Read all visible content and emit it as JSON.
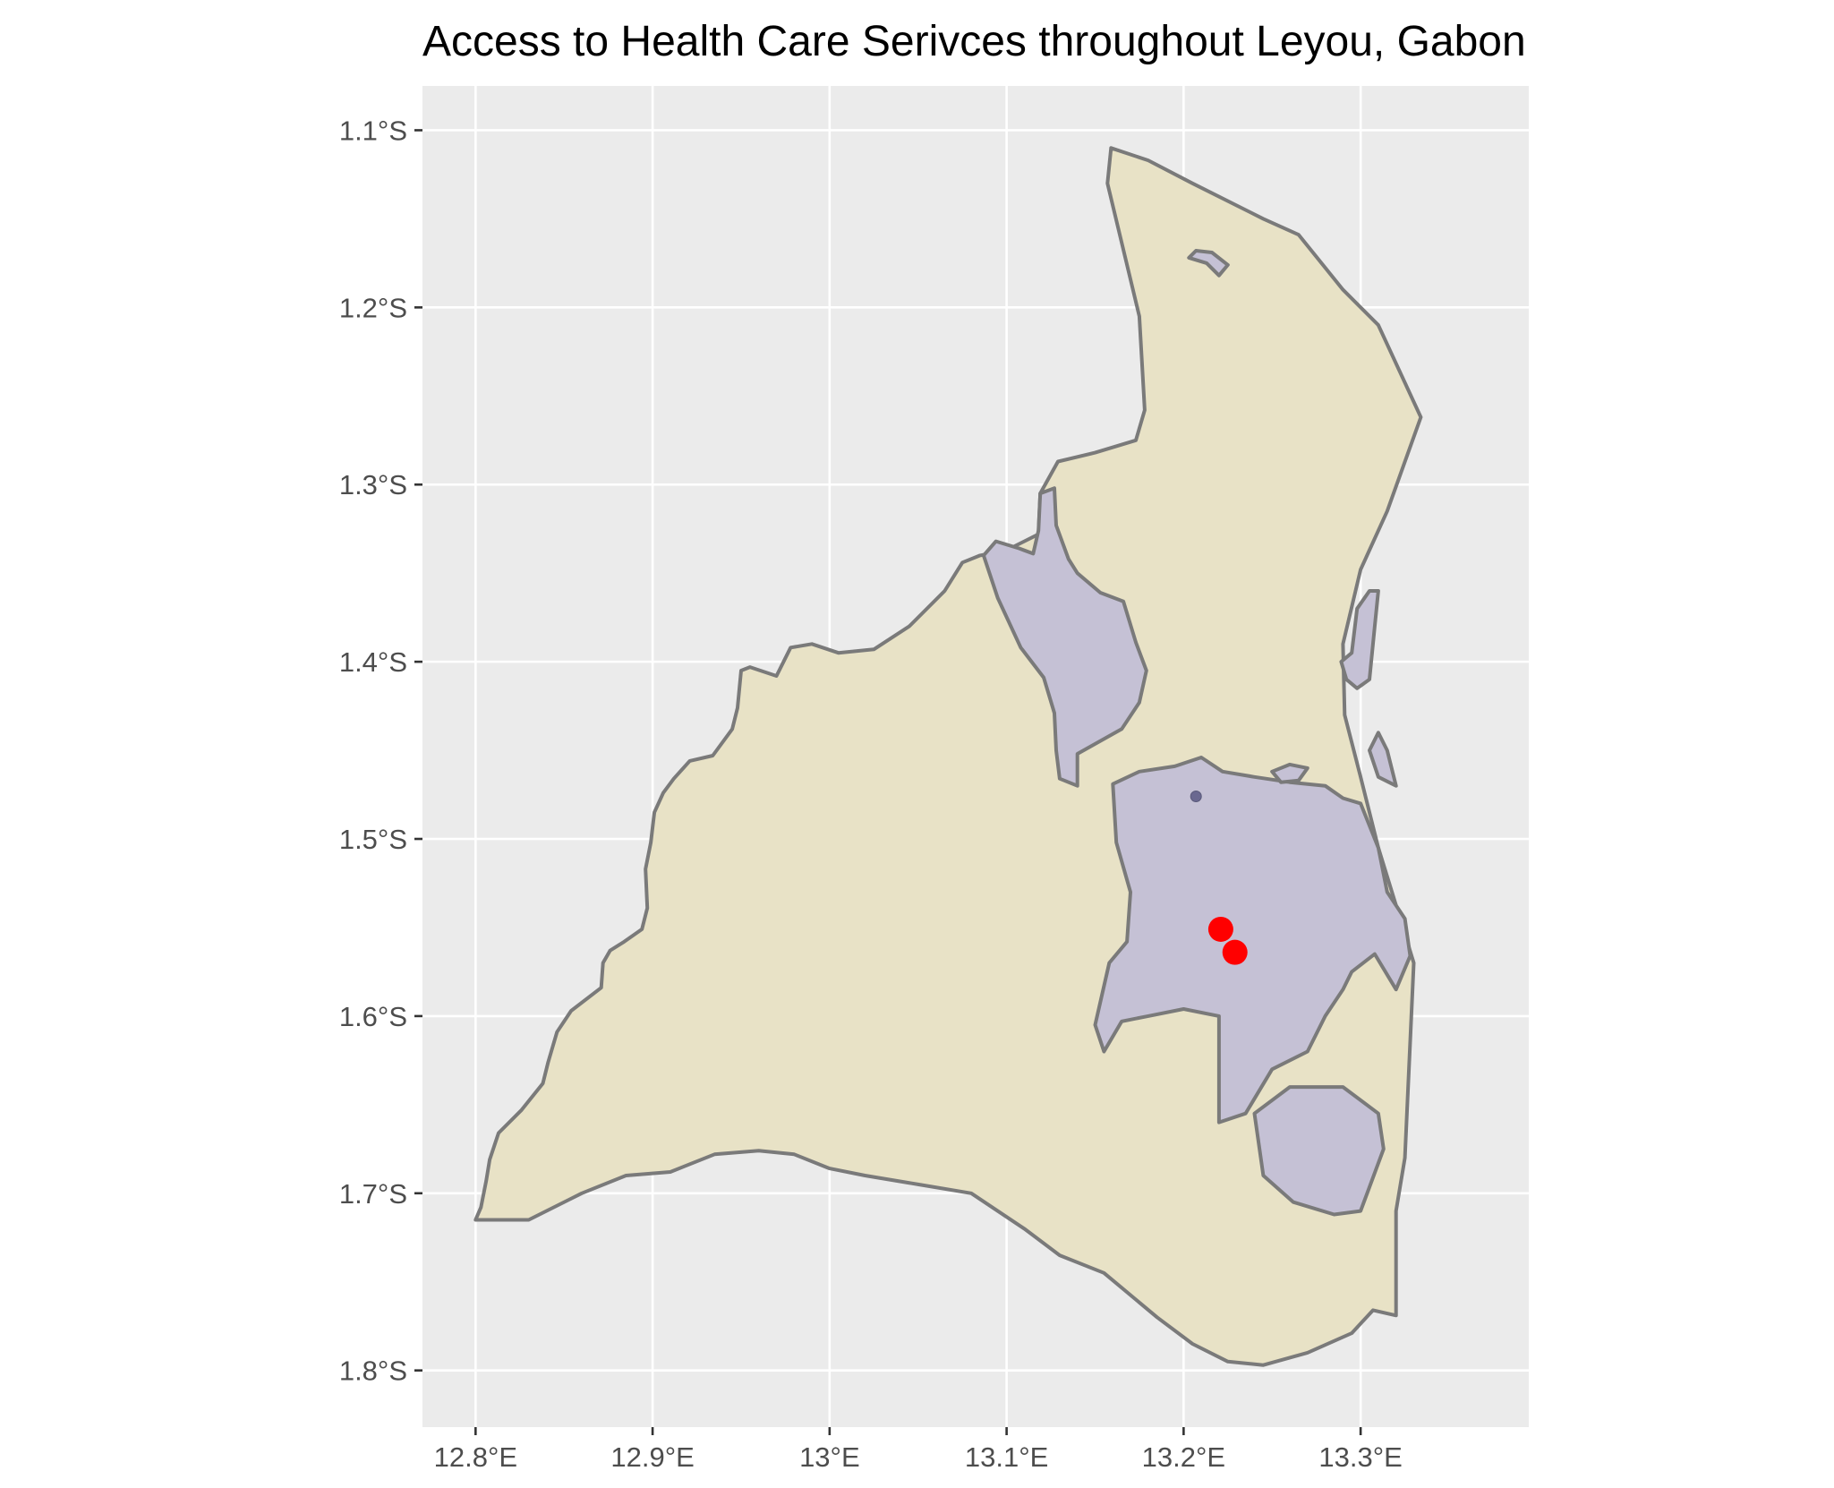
{
  "title": "Access to Health Care Serivces throughout Leyou, Gabon",
  "chart_data": {
    "type": "map",
    "title": "Access to Health Care Serivces throughout Leyou, Gabon",
    "x_ticks": [
      {
        "value": 12.8,
        "label": "12.8°E"
      },
      {
        "value": 12.9,
        "label": "12.9°E"
      },
      {
        "value": 13.0,
        "label": "13°E"
      },
      {
        "value": 13.1,
        "label": "13.1°E"
      },
      {
        "value": 13.2,
        "label": "13.2°E"
      },
      {
        "value": 13.3,
        "label": "13.3°E"
      }
    ],
    "y_ticks": [
      {
        "value": -1.1,
        "label": "1.1°S"
      },
      {
        "value": -1.2,
        "label": "1.2°S"
      },
      {
        "value": -1.3,
        "label": "1.3°S"
      },
      {
        "value": -1.4,
        "label": "1.4°S"
      },
      {
        "value": -1.5,
        "label": "1.5°S"
      },
      {
        "value": -1.6,
        "label": "1.6°S"
      },
      {
        "value": -1.7,
        "label": "1.7°S"
      },
      {
        "value": -1.8,
        "label": "1.8°S"
      }
    ],
    "xlim": [
      12.77,
      13.395
    ],
    "ylim": [
      -1.832,
      -1.075
    ],
    "grid": true,
    "legend": "none",
    "colors": {
      "panel": "#ebebeb",
      "gridline": "#ffffff",
      "boundary_fill": "#e8e2c6",
      "access_fill": "#c5c1d5",
      "outline": "#7a7a7a",
      "facility": "#ff0000"
    },
    "layers": [
      {
        "kind": "boundary",
        "coords": [
          [
            12.8,
            -1.715
          ],
          [
            12.803,
            -1.708
          ],
          [
            12.806,
            -1.693
          ],
          [
            12.808,
            -1.681
          ],
          [
            12.813,
            -1.666
          ],
          [
            12.826,
            -1.653
          ],
          [
            12.838,
            -1.638
          ],
          [
            12.841,
            -1.626
          ],
          [
            12.846,
            -1.609
          ],
          [
            12.854,
            -1.597
          ],
          [
            12.871,
            -1.584
          ],
          [
            12.872,
            -1.57
          ],
          [
            12.876,
            -1.563
          ],
          [
            12.884,
            -1.558
          ],
          [
            12.894,
            -1.551
          ],
          [
            12.897,
            -1.539
          ],
          [
            12.896,
            -1.517
          ],
          [
            12.899,
            -1.502
          ],
          [
            12.901,
            -1.485
          ],
          [
            12.906,
            -1.474
          ],
          [
            12.912,
            -1.466
          ],
          [
            12.921,
            -1.456
          ],
          [
            12.934,
            -1.453
          ],
          [
            12.945,
            -1.438
          ],
          [
            12.948,
            -1.426
          ],
          [
            12.95,
            -1.405
          ],
          [
            12.955,
            -1.403
          ],
          [
            12.97,
            -1.408
          ],
          [
            12.978,
            -1.392
          ],
          [
            12.99,
            -1.39
          ],
          [
            13.005,
            -1.395
          ],
          [
            13.025,
            -1.393
          ],
          [
            13.045,
            -1.38
          ],
          [
            13.065,
            -1.36
          ],
          [
            13.075,
            -1.344
          ],
          [
            13.085,
            -1.34
          ],
          [
            13.1,
            -1.337
          ],
          [
            13.118,
            -1.328
          ],
          [
            13.119,
            -1.305
          ],
          [
            13.129,
            -1.287
          ],
          [
            13.15,
            -1.282
          ],
          [
            13.173,
            -1.275
          ],
          [
            13.178,
            -1.258
          ],
          [
            13.175,
            -1.205
          ],
          [
            13.157,
            -1.13
          ],
          [
            13.159,
            -1.11
          ],
          [
            13.18,
            -1.117
          ],
          [
            13.205,
            -1.13
          ],
          [
            13.245,
            -1.15
          ],
          [
            13.265,
            -1.159
          ],
          [
            13.29,
            -1.19
          ],
          [
            13.31,
            -1.21
          ],
          [
            13.334,
            -1.262
          ],
          [
            13.315,
            -1.315
          ],
          [
            13.3,
            -1.348
          ],
          [
            13.29,
            -1.39
          ],
          [
            13.291,
            -1.43
          ],
          [
            13.3,
            -1.465
          ],
          [
            13.31,
            -1.505
          ],
          [
            13.33,
            -1.57
          ],
          [
            13.325,
            -1.68
          ],
          [
            13.32,
            -1.71
          ],
          [
            13.32,
            -1.769
          ],
          [
            13.307,
            -1.766
          ],
          [
            13.295,
            -1.779
          ],
          [
            13.27,
            -1.79
          ],
          [
            13.245,
            -1.797
          ],
          [
            13.225,
            -1.795
          ],
          [
            13.205,
            -1.785
          ],
          [
            13.185,
            -1.77
          ],
          [
            13.155,
            -1.745
          ],
          [
            13.13,
            -1.735
          ],
          [
            13.11,
            -1.72
          ],
          [
            13.08,
            -1.7
          ],
          [
            13.05,
            -1.695
          ],
          [
            13.02,
            -1.69
          ],
          [
            13,
            -1.686
          ],
          [
            12.98,
            -1.678
          ],
          [
            12.96,
            -1.676
          ],
          [
            12.935,
            -1.678
          ],
          [
            12.91,
            -1.688
          ],
          [
            12.885,
            -1.69
          ],
          [
            12.86,
            -1.7
          ],
          [
            12.83,
            -1.715
          ]
        ]
      },
      {
        "kind": "access-zone",
        "coords": [
          [
            13.213,
            -1.175
          ],
          [
            13.22,
            -1.182
          ],
          [
            13.225,
            -1.176
          ],
          [
            13.216,
            -1.169
          ],
          [
            13.207,
            -1.168
          ],
          [
            13.203,
            -1.172
          ]
        ]
      },
      {
        "kind": "access-zone",
        "coords": [
          [
            13.128,
            -1.45
          ],
          [
            13.127,
            -1.429
          ],
          [
            13.121,
            -1.409
          ],
          [
            13.108,
            -1.392
          ],
          [
            13.095,
            -1.364
          ],
          [
            13.087,
            -1.34
          ],
          [
            13.094,
            -1.332
          ],
          [
            13.107,
            -1.336
          ],
          [
            13.115,
            -1.339
          ],
          [
            13.118,
            -1.326
          ],
          [
            13.119,
            -1.305
          ],
          [
            13.127,
            -1.302
          ],
          [
            13.128,
            -1.323
          ],
          [
            13.135,
            -1.342
          ],
          [
            13.14,
            -1.35
          ],
          [
            13.153,
            -1.361
          ],
          [
            13.166,
            -1.366
          ],
          [
            13.173,
            -1.389
          ],
          [
            13.179,
            -1.405
          ],
          [
            13.175,
            -1.423
          ],
          [
            13.165,
            -1.438
          ],
          [
            13.14,
            -1.452
          ],
          [
            13.14,
            -1.47
          ],
          [
            13.13,
            -1.466
          ]
        ]
      },
      {
        "kind": "access-zone",
        "coords": [
          [
            13.16,
            -1.469
          ],
          [
            13.175,
            -1.462
          ],
          [
            13.195,
            -1.459
          ],
          [
            13.21,
            -1.454
          ],
          [
            13.222,
            -1.462
          ],
          [
            13.24,
            -1.465
          ],
          [
            13.26,
            -1.468
          ],
          [
            13.28,
            -1.47
          ],
          [
            13.29,
            -1.477
          ],
          [
            13.3,
            -1.48
          ],
          [
            13.31,
            -1.505
          ],
          [
            13.315,
            -1.53
          ],
          [
            13.325,
            -1.545
          ],
          [
            13.328,
            -1.566
          ],
          [
            13.32,
            -1.585
          ],
          [
            13.308,
            -1.565
          ],
          [
            13.295,
            -1.575
          ],
          [
            13.29,
            -1.585
          ],
          [
            13.28,
            -1.6
          ],
          [
            13.27,
            -1.62
          ],
          [
            13.25,
            -1.63
          ],
          [
            13.235,
            -1.655
          ],
          [
            13.22,
            -1.66
          ],
          [
            13.22,
            -1.6
          ],
          [
            13.2,
            -1.596
          ],
          [
            13.18,
            -1.6
          ],
          [
            13.165,
            -1.603
          ],
          [
            13.155,
            -1.62
          ],
          [
            13.15,
            -1.605
          ],
          [
            13.158,
            -1.57
          ],
          [
            13.168,
            -1.558
          ],
          [
            13.17,
            -1.53
          ],
          [
            13.162,
            -1.502
          ]
        ]
      },
      {
        "kind": "access-zone",
        "coords": [
          [
            13.24,
            -1.655
          ],
          [
            13.26,
            -1.64
          ],
          [
            13.29,
            -1.64
          ],
          [
            13.31,
            -1.655
          ],
          [
            13.313,
            -1.675
          ],
          [
            13.3,
            -1.71
          ],
          [
            13.285,
            -1.712
          ],
          [
            13.262,
            -1.705
          ],
          [
            13.245,
            -1.69
          ]
        ]
      },
      {
        "kind": "access-zone",
        "coords": [
          [
            13.289,
            -1.4
          ],
          [
            13.295,
            -1.395
          ],
          [
            13.298,
            -1.37
          ],
          [
            13.305,
            -1.36
          ],
          [
            13.31,
            -1.36
          ],
          [
            13.308,
            -1.38
          ],
          [
            13.305,
            -1.41
          ],
          [
            13.298,
            -1.415
          ],
          [
            13.292,
            -1.41
          ]
        ]
      },
      {
        "kind": "access-zone",
        "coords": [
          [
            13.31,
            -1.44
          ],
          [
            13.315,
            -1.45
          ],
          [
            13.32,
            -1.47
          ],
          [
            13.31,
            -1.465
          ],
          [
            13.305,
            -1.45
          ]
        ]
      },
      {
        "kind": "access-zone",
        "coords": [
          [
            13.25,
            -1.462
          ],
          [
            13.26,
            -1.458
          ],
          [
            13.27,
            -1.46
          ],
          [
            13.265,
            -1.467
          ],
          [
            13.255,
            -1.468
          ]
        ]
      }
    ],
    "facilities": [
      {
        "lon": 13.221,
        "lat": -1.551
      },
      {
        "lon": 13.229,
        "lat": -1.564
      }
    ],
    "small_markers": [
      {
        "lon": 13.207,
        "lat": -1.476
      }
    ]
  }
}
